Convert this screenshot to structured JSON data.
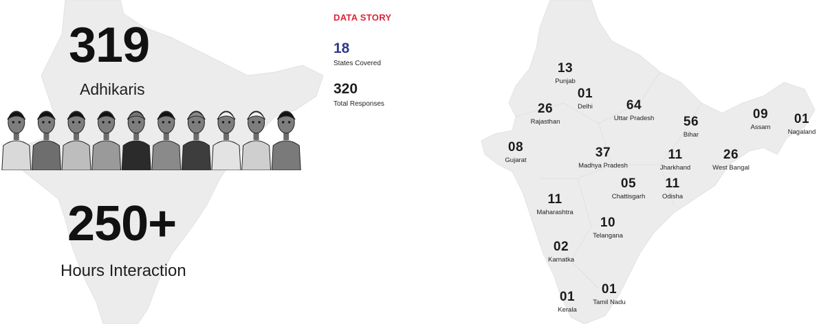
{
  "left": {
    "adhikaris_count": "319",
    "adhikaris_label": "Adhikaris",
    "hours_count": "250+",
    "hours_label": "Hours Interaction"
  },
  "story": {
    "title": "DATA STORY",
    "states_count": "18",
    "states_label": "States Covered",
    "responses_count": "320",
    "responses_label": "Total Responses",
    "accent_color": "#d9263a",
    "states_count_color": "#2e3a8c"
  },
  "states": [
    {
      "name": "Punjab",
      "count": "13"
    },
    {
      "name": "Delhi",
      "count": "01"
    },
    {
      "name": "Rajasthan",
      "count": "26"
    },
    {
      "name": "Uttar Pradesh",
      "count": "64"
    },
    {
      "name": "Bihar",
      "count": "56"
    },
    {
      "name": "Assam",
      "count": "09"
    },
    {
      "name": "Nagaland",
      "count": "01"
    },
    {
      "name": "Gujarat",
      "count": "08"
    },
    {
      "name": "Madhya Pradesh",
      "count": "37"
    },
    {
      "name": "Jharkhand",
      "count": "11"
    },
    {
      "name": "West Bangal",
      "count": "26"
    },
    {
      "name": "Chattisgarh",
      "count": "05"
    },
    {
      "name": "Odisha",
      "count": "11"
    },
    {
      "name": "Maharashtra",
      "count": "11"
    },
    {
      "name": "Telangana",
      "count": "10"
    },
    {
      "name": "Karnatka",
      "count": "02"
    },
    {
      "name": "Tamil Nadu",
      "count": "01"
    },
    {
      "name": "Kerala",
      "count": "01"
    }
  ]
}
